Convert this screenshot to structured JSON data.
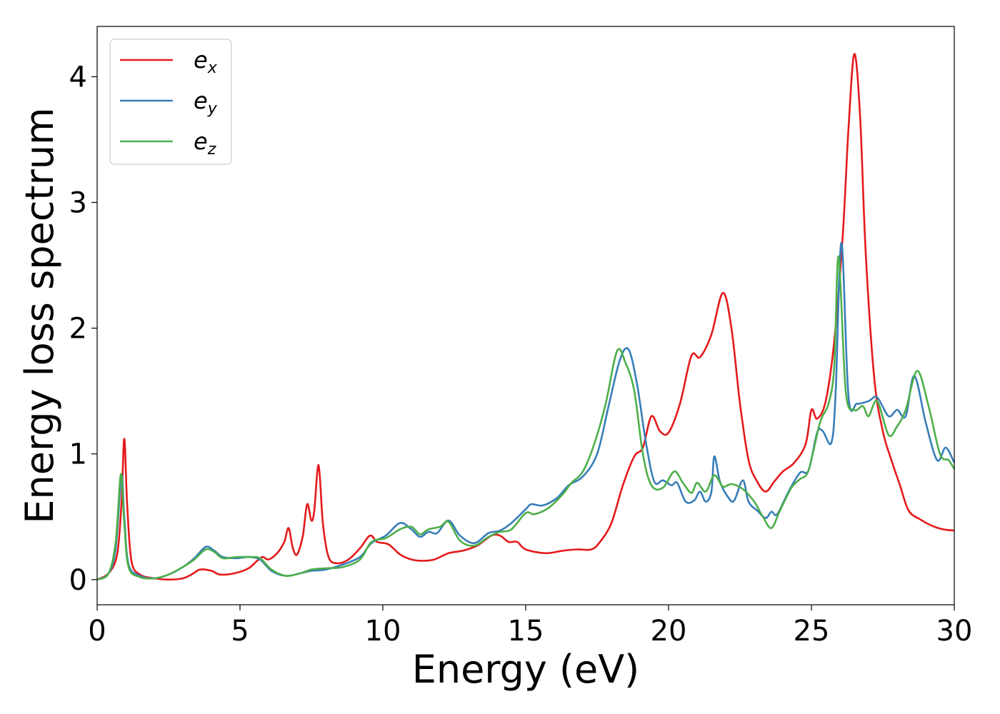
{
  "chart_data": {
    "type": "line",
    "title": "",
    "xlabel": "Energy (eV)",
    "ylabel": "Energy loss spectrum",
    "xlim": [
      0,
      30
    ],
    "ylim": [
      -0.2,
      4.4
    ],
    "xticks": [
      0,
      5,
      10,
      15,
      20,
      25,
      30
    ],
    "yticks": [
      0,
      1,
      2,
      3,
      4
    ],
    "xtick_labels": [
      "0",
      "5",
      "10",
      "15",
      "20",
      "25",
      "30"
    ],
    "ytick_labels": [
      "0",
      "1",
      "2",
      "3",
      "4"
    ],
    "grid": false,
    "legend_position": "top-left",
    "series": [
      {
        "name": "e_x",
        "label_base": "e",
        "label_sub": "x",
        "color": "#e41a1c",
        "points": [
          [
            0,
            0
          ],
          [
            0.4,
            0.05
          ],
          [
            0.7,
            0.2
          ],
          [
            0.85,
            0.6
          ],
          [
            0.95,
            1.12
          ],
          [
            1.05,
            0.6
          ],
          [
            1.2,
            0.15
          ],
          [
            1.5,
            0.04
          ],
          [
            2,
            0.01
          ],
          [
            2.5,
            0.0
          ],
          [
            3,
            0.01
          ],
          [
            3.3,
            0.04
          ],
          [
            3.6,
            0.08
          ],
          [
            4,
            0.07
          ],
          [
            4.3,
            0.04
          ],
          [
            4.8,
            0.05
          ],
          [
            5.3,
            0.09
          ],
          [
            5.6,
            0.15
          ],
          [
            5.8,
            0.18
          ],
          [
            6.0,
            0.16
          ],
          [
            6.3,
            0.21
          ],
          [
            6.55,
            0.3
          ],
          [
            6.7,
            0.41
          ],
          [
            6.85,
            0.25
          ],
          [
            7.0,
            0.2
          ],
          [
            7.2,
            0.35
          ],
          [
            7.35,
            0.6
          ],
          [
            7.5,
            0.47
          ],
          [
            7.6,
            0.55
          ],
          [
            7.75,
            0.91
          ],
          [
            7.9,
            0.45
          ],
          [
            8.1,
            0.18
          ],
          [
            8.4,
            0.13
          ],
          [
            8.8,
            0.16
          ],
          [
            9.2,
            0.25
          ],
          [
            9.55,
            0.35
          ],
          [
            9.8,
            0.3
          ],
          [
            10.2,
            0.28
          ],
          [
            10.6,
            0.2
          ],
          [
            11,
            0.16
          ],
          [
            11.4,
            0.15
          ],
          [
            11.8,
            0.16
          ],
          [
            12.3,
            0.21
          ],
          [
            12.8,
            0.23
          ],
          [
            13.3,
            0.27
          ],
          [
            13.8,
            0.35
          ],
          [
            14.1,
            0.35
          ],
          [
            14.4,
            0.3
          ],
          [
            14.7,
            0.3
          ],
          [
            15.0,
            0.24
          ],
          [
            15.7,
            0.21
          ],
          [
            16.3,
            0.23
          ],
          [
            16.8,
            0.24
          ],
          [
            17.3,
            0.24
          ],
          [
            17.6,
            0.3
          ],
          [
            18.0,
            0.45
          ],
          [
            18.4,
            0.75
          ],
          [
            18.8,
            0.98
          ],
          [
            19.1,
            1.05
          ],
          [
            19.4,
            1.3
          ],
          [
            19.7,
            1.18
          ],
          [
            20.0,
            1.17
          ],
          [
            20.4,
            1.4
          ],
          [
            20.8,
            1.78
          ],
          [
            21.1,
            1.77
          ],
          [
            21.5,
            1.95
          ],
          [
            21.9,
            2.28
          ],
          [
            22.2,
            2.0
          ],
          [
            22.5,
            1.4
          ],
          [
            22.8,
            0.95
          ],
          [
            23.1,
            0.78
          ],
          [
            23.4,
            0.7
          ],
          [
            23.7,
            0.78
          ],
          [
            24.0,
            0.86
          ],
          [
            24.4,
            0.93
          ],
          [
            24.8,
            1.08
          ],
          [
            25.0,
            1.35
          ],
          [
            25.2,
            1.28
          ],
          [
            25.5,
            1.42
          ],
          [
            25.8,
            1.9
          ],
          [
            26.1,
            2.75
          ],
          [
            26.3,
            3.6
          ],
          [
            26.5,
            4.18
          ],
          [
            26.7,
            3.7
          ],
          [
            26.9,
            2.6
          ],
          [
            27.2,
            1.6
          ],
          [
            27.5,
            1.18
          ],
          [
            27.8,
            0.95
          ],
          [
            28.1,
            0.75
          ],
          [
            28.4,
            0.55
          ],
          [
            28.8,
            0.48
          ],
          [
            29.2,
            0.43
          ],
          [
            29.6,
            0.4
          ],
          [
            30,
            0.39
          ]
        ]
      },
      {
        "name": "e_y",
        "label_base": "e",
        "label_sub": "y",
        "color": "#377eb8",
        "points": [
          [
            0,
            0
          ],
          [
            0.4,
            0.05
          ],
          [
            0.65,
            0.25
          ],
          [
            0.85,
            0.83
          ],
          [
            0.95,
            0.5
          ],
          [
            1.1,
            0.12
          ],
          [
            1.5,
            0.03
          ],
          [
            2,
            0.01
          ],
          [
            2.5,
            0.04
          ],
          [
            3.0,
            0.1
          ],
          [
            3.4,
            0.17
          ],
          [
            3.8,
            0.26
          ],
          [
            4.1,
            0.23
          ],
          [
            4.4,
            0.18
          ],
          [
            4.9,
            0.17
          ],
          [
            5.3,
            0.18
          ],
          [
            5.7,
            0.16
          ],
          [
            6.1,
            0.07
          ],
          [
            6.6,
            0.03
          ],
          [
            7.1,
            0.05
          ],
          [
            7.5,
            0.07
          ],
          [
            8.0,
            0.08
          ],
          [
            8.6,
            0.12
          ],
          [
            9.2,
            0.18
          ],
          [
            9.6,
            0.29
          ],
          [
            10.1,
            0.35
          ],
          [
            10.6,
            0.45
          ],
          [
            11.0,
            0.4
          ],
          [
            11.3,
            0.34
          ],
          [
            11.6,
            0.38
          ],
          [
            11.9,
            0.37
          ],
          [
            12.3,
            0.47
          ],
          [
            12.7,
            0.35
          ],
          [
            13.2,
            0.29
          ],
          [
            13.7,
            0.37
          ],
          [
            14.1,
            0.39
          ],
          [
            14.5,
            0.45
          ],
          [
            15.0,
            0.56
          ],
          [
            15.2,
            0.6
          ],
          [
            15.6,
            0.59
          ],
          [
            16.1,
            0.65
          ],
          [
            16.5,
            0.75
          ],
          [
            17.0,
            0.82
          ],
          [
            17.5,
            1.0
          ],
          [
            17.9,
            1.38
          ],
          [
            18.3,
            1.75
          ],
          [
            18.6,
            1.83
          ],
          [
            18.9,
            1.55
          ],
          [
            19.2,
            1.1
          ],
          [
            19.5,
            0.78
          ],
          [
            19.8,
            0.79
          ],
          [
            20.1,
            0.75
          ],
          [
            20.3,
            0.77
          ],
          [
            20.6,
            0.62
          ],
          [
            20.9,
            0.63
          ],
          [
            21.1,
            0.7
          ],
          [
            21.3,
            0.62
          ],
          [
            21.5,
            0.7
          ],
          [
            21.6,
            0.98
          ],
          [
            21.8,
            0.78
          ],
          [
            22.1,
            0.65
          ],
          [
            22.3,
            0.63
          ],
          [
            22.6,
            0.79
          ],
          [
            22.8,
            0.62
          ],
          [
            23.1,
            0.55
          ],
          [
            23.4,
            0.49
          ],
          [
            23.6,
            0.54
          ],
          [
            23.8,
            0.52
          ],
          [
            24.2,
            0.7
          ],
          [
            24.6,
            0.85
          ],
          [
            24.9,
            0.87
          ],
          [
            25.2,
            1.17
          ],
          [
            25.4,
            1.18
          ],
          [
            25.7,
            1.09
          ],
          [
            25.85,
            1.5
          ],
          [
            26.05,
            2.68
          ],
          [
            26.3,
            1.45
          ],
          [
            26.6,
            1.4
          ],
          [
            27.0,
            1.42
          ],
          [
            27.3,
            1.45
          ],
          [
            27.7,
            1.3
          ],
          [
            28.0,
            1.35
          ],
          [
            28.3,
            1.3
          ],
          [
            28.6,
            1.62
          ],
          [
            29.0,
            1.25
          ],
          [
            29.4,
            0.95
          ],
          [
            29.7,
            1.05
          ],
          [
            30,
            0.93
          ]
        ]
      },
      {
        "name": "e_z",
        "label_base": "e",
        "label_sub": "z",
        "color": "#4daf4a",
        "points": [
          [
            0,
            0
          ],
          [
            0.4,
            0.05
          ],
          [
            0.65,
            0.3
          ],
          [
            0.83,
            0.84
          ],
          [
            0.95,
            0.45
          ],
          [
            1.1,
            0.1
          ],
          [
            1.5,
            0.02
          ],
          [
            2,
            0.01
          ],
          [
            2.5,
            0.04
          ],
          [
            3.0,
            0.1
          ],
          [
            3.4,
            0.16
          ],
          [
            3.8,
            0.24
          ],
          [
            4.1,
            0.22
          ],
          [
            4.4,
            0.17
          ],
          [
            4.9,
            0.18
          ],
          [
            5.3,
            0.18
          ],
          [
            5.7,
            0.17
          ],
          [
            6.1,
            0.08
          ],
          [
            6.6,
            0.03
          ],
          [
            7.1,
            0.05
          ],
          [
            7.5,
            0.08
          ],
          [
            8.0,
            0.09
          ],
          [
            8.6,
            0.1
          ],
          [
            9.2,
            0.16
          ],
          [
            9.6,
            0.3
          ],
          [
            10.1,
            0.33
          ],
          [
            10.6,
            0.4
          ],
          [
            11.0,
            0.42
          ],
          [
            11.3,
            0.36
          ],
          [
            11.6,
            0.4
          ],
          [
            12.0,
            0.42
          ],
          [
            12.3,
            0.46
          ],
          [
            12.7,
            0.31
          ],
          [
            13.2,
            0.27
          ],
          [
            13.7,
            0.34
          ],
          [
            14.1,
            0.38
          ],
          [
            14.5,
            0.4
          ],
          [
            15.0,
            0.53
          ],
          [
            15.3,
            0.52
          ],
          [
            15.8,
            0.57
          ],
          [
            16.3,
            0.68
          ],
          [
            16.6,
            0.77
          ],
          [
            17.0,
            0.86
          ],
          [
            17.4,
            1.08
          ],
          [
            17.8,
            1.4
          ],
          [
            18.2,
            1.82
          ],
          [
            18.5,
            1.72
          ],
          [
            18.8,
            1.5
          ],
          [
            19.1,
            1.0
          ],
          [
            19.4,
            0.75
          ],
          [
            19.8,
            0.73
          ],
          [
            20.2,
            0.86
          ],
          [
            20.5,
            0.77
          ],
          [
            20.8,
            0.69
          ],
          [
            21.0,
            0.77
          ],
          [
            21.3,
            0.7
          ],
          [
            21.6,
            0.83
          ],
          [
            21.9,
            0.74
          ],
          [
            22.2,
            0.76
          ],
          [
            22.6,
            0.72
          ],
          [
            23.0,
            0.62
          ],
          [
            23.3,
            0.5
          ],
          [
            23.6,
            0.41
          ],
          [
            23.9,
            0.55
          ],
          [
            24.3,
            0.73
          ],
          [
            24.6,
            0.8
          ],
          [
            24.9,
            0.87
          ],
          [
            25.3,
            1.25
          ],
          [
            25.6,
            1.4
          ],
          [
            25.8,
            1.7
          ],
          [
            25.95,
            2.57
          ],
          [
            26.2,
            1.5
          ],
          [
            26.5,
            1.35
          ],
          [
            26.8,
            1.38
          ],
          [
            27.0,
            1.3
          ],
          [
            27.3,
            1.42
          ],
          [
            27.7,
            1.15
          ],
          [
            28.0,
            1.22
          ],
          [
            28.3,
            1.35
          ],
          [
            28.7,
            1.66
          ],
          [
            29.1,
            1.38
          ],
          [
            29.5,
            1.0
          ],
          [
            29.8,
            0.95
          ],
          [
            30,
            0.88
          ]
        ]
      }
    ]
  }
}
